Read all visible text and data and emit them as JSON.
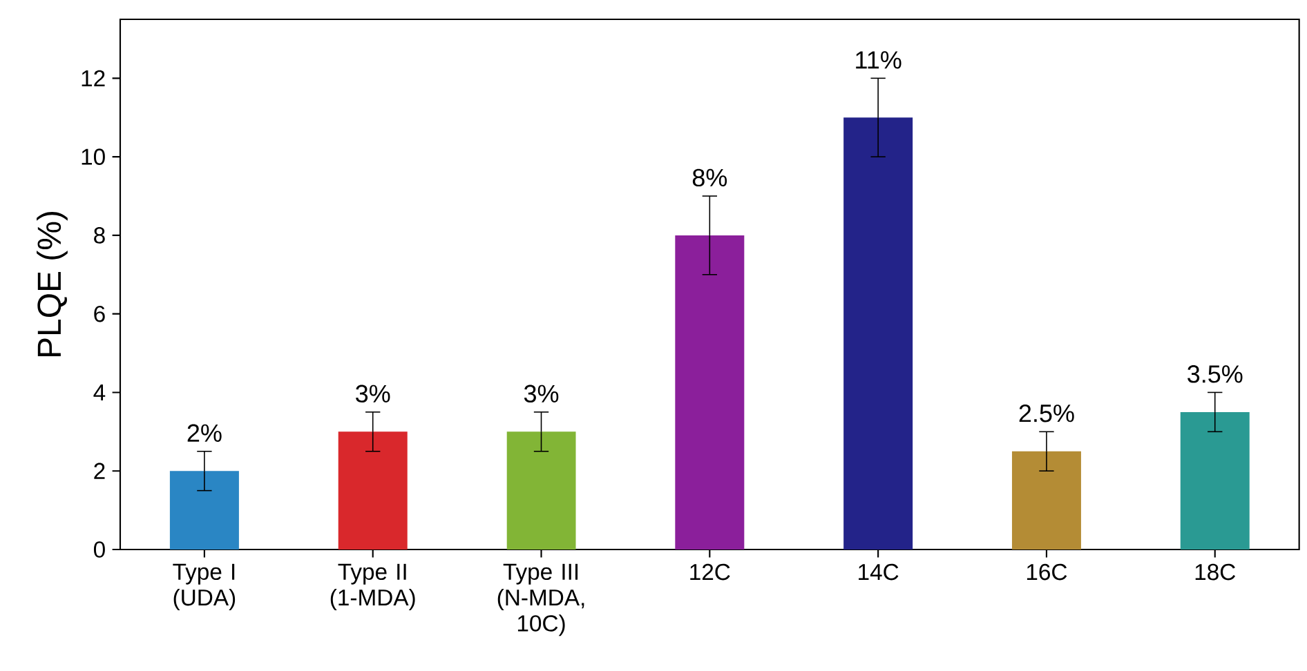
{
  "chart_data": {
    "type": "bar",
    "ylabel": "PLQE (%)",
    "categories": [
      "Type I (UDA)",
      "Type II (1-MDA)",
      "Type III (N-MDA, 10C)",
      "12C",
      "14C",
      "16C",
      "18C"
    ],
    "values": [
      2,
      3,
      3,
      8,
      11,
      2.5,
      3.5
    ],
    "errors": [
      0.5,
      0.5,
      0.5,
      1,
      1,
      0.5,
      0.5
    ],
    "value_labels": [
      "2%",
      "3%",
      "3%",
      "8%",
      "11%",
      "2.5%",
      "3.5%"
    ],
    "colors": [
      "#2a86c4",
      "#d9282c",
      "#82b536",
      "#8b1f9b",
      "#232389",
      "#b48c35",
      "#2a9a93"
    ],
    "ylim": [
      0,
      13.5
    ],
    "yticks": [
      0,
      2,
      4,
      6,
      8,
      10,
      12
    ]
  }
}
